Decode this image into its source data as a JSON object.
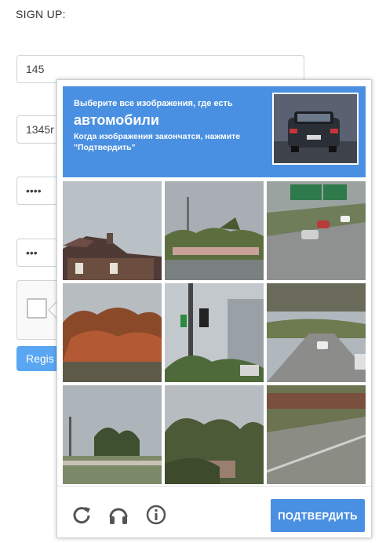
{
  "form": {
    "title": "SIGN UP:",
    "fields": [
      {
        "value": "145"
      },
      {
        "value": "1345r"
      },
      {
        "value": "••••"
      },
      {
        "value": "•••"
      }
    ],
    "register_label": "Regis"
  },
  "challenge": {
    "header": {
      "line1": "Выберите все изображения, где есть",
      "keyword": "автомобили",
      "line2": "Когда изображения закончатся, нажмите \"Подтвердить\"",
      "color": "#4a90e2"
    },
    "tiles": [
      {
        "icon": "house-roof-photo"
      },
      {
        "icon": "palm-street-photo"
      },
      {
        "icon": "highway-cars-photo"
      },
      {
        "icon": "autumn-trees-photo"
      },
      {
        "icon": "traffic-light-palms-photo"
      },
      {
        "icon": "overpass-road-photo"
      },
      {
        "icon": "trees-field-photo"
      },
      {
        "icon": "bushes-house-photo"
      },
      {
        "icon": "road-hillside-photo"
      }
    ],
    "footer": {
      "icons": [
        "reload-icon",
        "headphones-icon",
        "info-icon"
      ],
      "verify_label": "ПОДТВЕРДИТЬ"
    }
  }
}
